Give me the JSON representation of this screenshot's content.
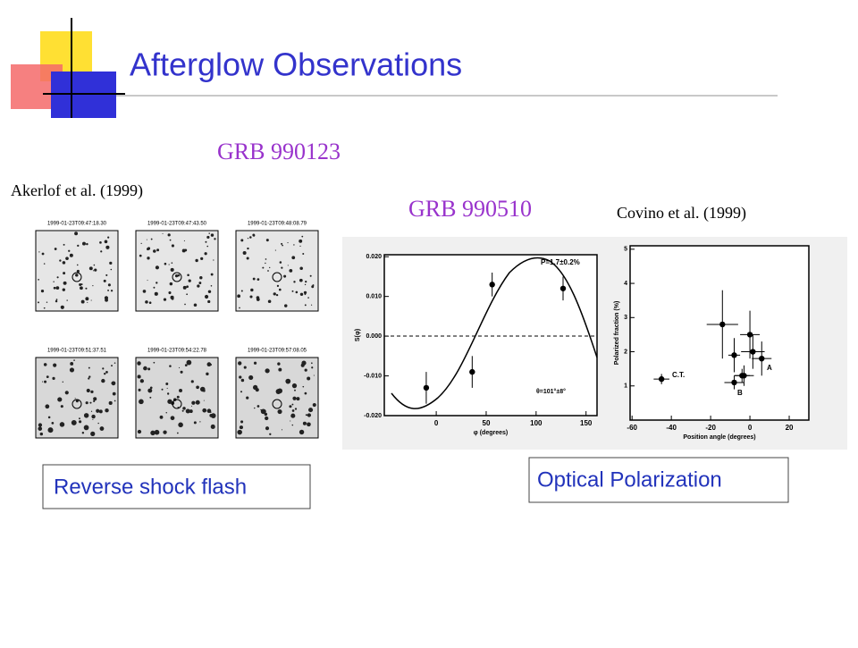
{
  "title": "Afterglow Observations",
  "grb1": "GRB 990123",
  "ref1": "Akerlof et al. (1999)",
  "grb2": "GRB 990510",
  "ref2": "Covino et al. (1999)",
  "frames": [
    "1999-01-23T09:47:18.30",
    "1999-01-23T09:47:43.50",
    "1999-01-23T09:48:08.79",
    "1999-01-23T09:51:37.51",
    "1999-01-23T09:54:22.78",
    "1999-01-23T09:57:08.05"
  ],
  "caption1": "Reverse shock flash",
  "caption2": "Optical Polarization",
  "curve_plot": {
    "type": "scatter",
    "xlabel": "φ (degrees)",
    "ylabel": "S(φ)",
    "x": [
      -10,
      36,
      56,
      127
    ],
    "values": [
      -0.013,
      -0.009,
      0.013,
      0.012
    ],
    "errors": [
      0.004,
      0.004,
      0.003,
      0.003
    ],
    "xlim": [
      -52,
      161
    ],
    "ylim": [
      -0.02,
      0.0205
    ],
    "xticks": [
      0,
      50,
      100,
      150
    ],
    "yticks": [
      {
        "value": -0.02,
        "label": "-0.020"
      },
      {
        "value": -0.01,
        "label": "-0.010"
      },
      {
        "value": 0,
        "label": "0.000"
      },
      {
        "value": 0.01,
        "label": "0.010"
      },
      {
        "value": 0.02,
        "label": "0.020"
      }
    ],
    "annotations": [
      "P=1.7±0.2%",
      "θ=101°±8°"
    ]
  },
  "pol_plot": {
    "type": "scatter",
    "xlabel": "Position angle (degrees)",
    "ylabel": "Polarized fraction (%)",
    "x": [
      -45,
      -14,
      -8,
      -3,
      0,
      1.5,
      6,
      -8,
      -4
    ],
    "values": [
      1.2,
      2.8,
      1.9,
      1.3,
      2.5,
      2.0,
      1.8,
      1.1,
      1.3
    ],
    "yerr": [
      0.15,
      1.0,
      0.5,
      0.3,
      0.7,
      0.5,
      0.5,
      0.2,
      0.2
    ],
    "xerr": [
      4,
      8,
      3,
      5,
      5,
      6,
      5,
      5,
      4
    ],
    "xlim": [
      -61,
      30
    ],
    "ylim": [
      0,
      5.1
    ],
    "xticks": [
      -60,
      -40,
      -20,
      0,
      20
    ],
    "yticks": [
      1,
      2,
      3,
      4,
      5
    ],
    "annotations": [
      "C.T.",
      "B",
      "A"
    ]
  }
}
